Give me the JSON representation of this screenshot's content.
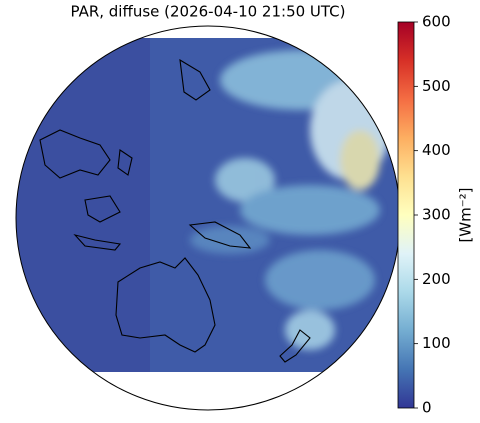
{
  "title": "PAR, diffuse (2026-04-10 21:50 UTC)",
  "colorbar": {
    "label": "[Wm⁻²]",
    "lim": [
      0,
      600
    ],
    "ticks": [
      0,
      100,
      200,
      300,
      400,
      500,
      600
    ]
  }
}
